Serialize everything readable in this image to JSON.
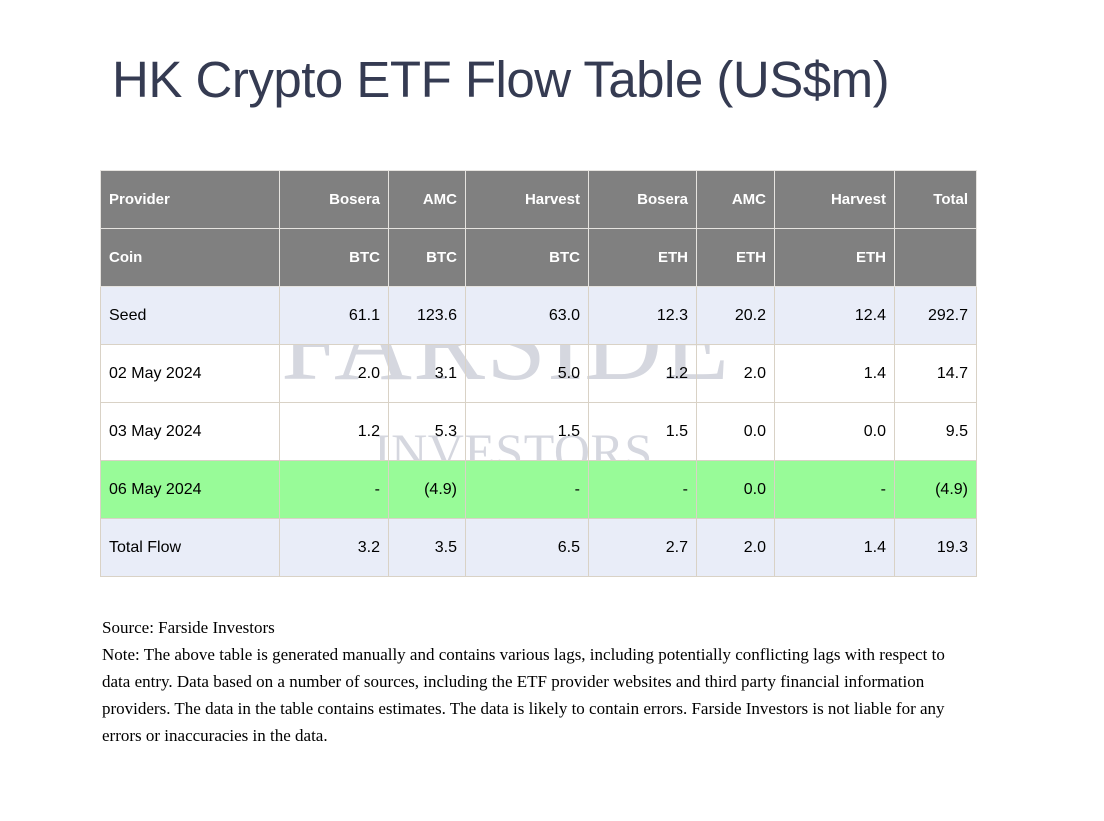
{
  "title": "HK Crypto ETF Flow Table (US$m)",
  "watermark": {
    "line1": "FARSIDE",
    "line2": "INVESTORS"
  },
  "chart_data": {
    "type": "table",
    "title": "HK Crypto ETF Flow Table (US$m)",
    "header_rows": [
      {
        "label": "Provider",
        "cells": [
          "Bosera",
          "AMC",
          "Harvest",
          "Bosera",
          "AMC",
          "Harvest",
          "Total"
        ]
      },
      {
        "label": "Coin",
        "cells": [
          "BTC",
          "BTC",
          "BTC",
          "ETH",
          "ETH",
          "ETH",
          ""
        ]
      }
    ],
    "rows": [
      {
        "label": "Seed",
        "cells": [
          "61.1",
          "123.6",
          "63.0",
          "12.3",
          "20.2",
          "12.4",
          "292.7"
        ],
        "highlight": "lavender"
      },
      {
        "label": "02 May 2024",
        "cells": [
          "2.0",
          "3.1",
          "5.0",
          "1.2",
          "2.0",
          "1.4",
          "14.7"
        ],
        "highlight": "none"
      },
      {
        "label": "03 May 2024",
        "cells": [
          "1.2",
          "5.3",
          "1.5",
          "1.5",
          "0.0",
          "0.0",
          "9.5"
        ],
        "highlight": "none"
      },
      {
        "label": "06 May 2024",
        "cells": [
          "-",
          "(4.9)",
          "-",
          "-",
          "0.0",
          "-",
          "(4.9)"
        ],
        "highlight": "green"
      },
      {
        "label": "Total Flow",
        "cells": [
          "3.2",
          "3.5",
          "6.5",
          "2.7",
          "2.0",
          "1.4",
          "19.3"
        ],
        "highlight": "lavender"
      }
    ]
  },
  "footer": {
    "source": "Source: Farside Investors",
    "note": "Note: The above table is generated manually and contains various lags, including potentially conflicting lags with respect to data entry. Data based on a number of sources, including the ETF provider websites and third party financial information providers. The data in the table contains estimates. The data is likely to contain errors. Farside Investors is not liable for any errors or inaccuracies in the data."
  },
  "colors": {
    "title_text": "#353B52",
    "header_bg": "#808080",
    "header_text": "#FFFFFF",
    "row_lavender": "#E9EDF8",
    "row_green": "#98FB98",
    "negative_text": "#FF0000",
    "border": "#D9D2C6",
    "watermark_text": "#D5D7DF"
  }
}
